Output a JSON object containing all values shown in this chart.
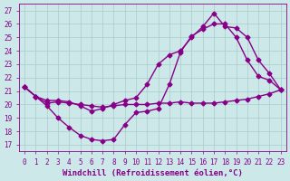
{
  "xlabel": "Windchill (Refroidissement éolien,°C)",
  "background_color": "#cce8e8",
  "grid_color": "#aacccc",
  "line_color": "#880088",
  "xlim": [
    -0.5,
    23.5
  ],
  "ylim": [
    16.5,
    27.5
  ],
  "xticks": [
    0,
    1,
    2,
    3,
    4,
    5,
    6,
    7,
    8,
    9,
    10,
    11,
    12,
    13,
    14,
    15,
    16,
    17,
    18,
    19,
    20,
    21,
    22,
    23
  ],
  "yticks": [
    17,
    18,
    19,
    20,
    21,
    22,
    23,
    24,
    25,
    26,
    27
  ],
  "line1_x": [
    0,
    1,
    2,
    3,
    4,
    5,
    6,
    7,
    8,
    9,
    10,
    11,
    12,
    13,
    14,
    15,
    16,
    17,
    18,
    19,
    20,
    21,
    22,
    23
  ],
  "line1_y": [
    21.3,
    20.6,
    20.1,
    20.2,
    20.1,
    20.0,
    19.9,
    19.8,
    19.9,
    20.0,
    20.0,
    20.0,
    20.1,
    20.1,
    20.2,
    20.1,
    20.1,
    20.1,
    20.2,
    20.3,
    20.4,
    20.6,
    20.8,
    21.1
  ],
  "line2_x": [
    0,
    1,
    2,
    3,
    4,
    5,
    6,
    7,
    8,
    9,
    10,
    11,
    12,
    13,
    14,
    15,
    16,
    17,
    18,
    19,
    20,
    21,
    22,
    23
  ],
  "line2_y": [
    21.3,
    20.6,
    19.9,
    19.0,
    18.3,
    17.7,
    17.4,
    17.3,
    17.4,
    18.5,
    19.4,
    19.5,
    19.7,
    21.5,
    23.9,
    25.1,
    25.6,
    26.0,
    26.0,
    25.0,
    23.3,
    22.1,
    21.8,
    21.1
  ],
  "line3_x": [
    0,
    1,
    2,
    3,
    4,
    5,
    6,
    7,
    8,
    9,
    10,
    11,
    12,
    13,
    14,
    15,
    16,
    17,
    18,
    19,
    20,
    21,
    22,
    23
  ],
  "line3_y": [
    21.3,
    20.6,
    20.3,
    20.3,
    20.2,
    19.9,
    19.5,
    19.7,
    20.0,
    20.3,
    20.5,
    21.5,
    23.0,
    23.7,
    24.0,
    25.0,
    25.8,
    26.8,
    25.8,
    25.7,
    25.0,
    23.3,
    22.3,
    21.1
  ],
  "markersize": 2.5,
  "linewidth": 1.0,
  "font_color": "#880088",
  "tick_fontsize": 5.5,
  "label_fontsize": 6.5
}
